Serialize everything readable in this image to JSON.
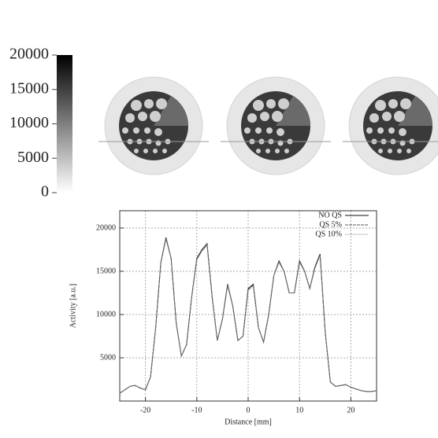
{
  "chart_data": [
    {
      "type": "colorbar",
      "ylim": [
        0,
        20000
      ],
      "yticks": [
        0,
        5000,
        10000,
        15000,
        20000
      ],
      "colors": [
        "#ffffff",
        "#000000"
      ]
    },
    {
      "type": "line",
      "xlabel": "Distance [mm]",
      "ylabel": "Activity [a.u.]",
      "xlim": [
        -25,
        25
      ],
      "ylim": [
        0,
        22000
      ],
      "xticks": [
        -20,
        -10,
        0,
        10,
        20
      ],
      "yticks": [
        5000,
        10000,
        15000,
        20000
      ],
      "grid": true,
      "legend": "upper right",
      "x": [
        -25,
        -24,
        -23,
        -22,
        -21,
        -20,
        -19,
        -18,
        -17,
        -16,
        -15,
        -14,
        -13,
        -12,
        -11,
        -10,
        -9,
        -8,
        -7,
        -6,
        -5,
        -4,
        -3,
        -2,
        -1,
        0,
        1,
        2,
        3,
        4,
        5,
        6,
        7,
        8,
        9,
        10,
        11,
        12,
        13,
        14,
        15,
        16,
        17,
        18,
        19,
        20,
        21,
        22,
        23,
        24,
        25
      ],
      "series": [
        {
          "name": "NO QS",
          "color": "#111111",
          "values": [
            900,
            1300,
            1700,
            1800,
            1500,
            1300,
            2800,
            8500,
            16000,
            18900,
            16500,
            9000,
            5200,
            6500,
            12000,
            16500,
            17500,
            18200,
            12000,
            7000,
            9500,
            13500,
            11000,
            7000,
            7500,
            13000,
            13500,
            8500,
            6800,
            10000,
            14500,
            16200,
            15000,
            12500,
            12500,
            16200,
            15000,
            13000,
            15500,
            17000,
            8000,
            2200,
            1700,
            1800,
            1900,
            1600,
            1400,
            1200,
            1100,
            1100,
            1200
          ]
        },
        {
          "name": "QS 5%",
          "color": "#555555",
          "values": [
            900,
            1300,
            1700,
            1800,
            1500,
            1300,
            2800,
            8500,
            16000,
            18800,
            16500,
            9000,
            5200,
            6500,
            12000,
            16400,
            17400,
            18100,
            12000,
            7000,
            9500,
            13400,
            11000,
            7000,
            7500,
            12900,
            13400,
            8500,
            6800,
            10000,
            14500,
            16100,
            15000,
            12500,
            12500,
            16100,
            15000,
            13000,
            15400,
            16900,
            8000,
            2200,
            1700,
            1800,
            1900,
            1600,
            1400,
            1200,
            1100,
            1100,
            1200
          ]
        },
        {
          "name": "QS 10%",
          "color": "#888888",
          "values": [
            900,
            1300,
            1700,
            1800,
            1500,
            1300,
            2800,
            8500,
            16000,
            18700,
            16500,
            9000,
            5200,
            6500,
            12000,
            16300,
            17300,
            18000,
            12000,
            7000,
            9500,
            13300,
            11000,
            7000,
            7500,
            12800,
            13300,
            8500,
            6800,
            10000,
            14500,
            16000,
            15000,
            12500,
            12500,
            16000,
            15000,
            13000,
            15300,
            16800,
            8000,
            2200,
            1700,
            1800,
            1900,
            1600,
            1400,
            1200,
            1100,
            1100,
            1200
          ]
        }
      ]
    }
  ]
}
